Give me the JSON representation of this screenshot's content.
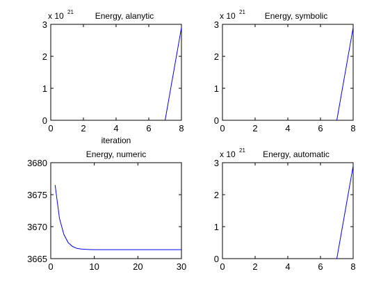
{
  "figure": {
    "background": "#ffffff",
    "line_color": "#0000ff",
    "axis_color": "#000000"
  },
  "chart_data": [
    {
      "type": "line",
      "title": "Energy, alanytic",
      "xlabel": "iteration",
      "ylabel": "",
      "exponent_label": "x 10",
      "exponent_power": "21",
      "xlim": [
        0,
        8
      ],
      "ylim": [
        0,
        3
      ],
      "xticks": [
        0,
        2,
        4,
        6,
        8
      ],
      "yticks": [
        0,
        1,
        2,
        3
      ],
      "series": [
        {
          "x": [
            7,
            8
          ],
          "y": [
            0,
            2.9
          ]
        }
      ]
    },
    {
      "type": "line",
      "title": "Energy, symbolic",
      "xlabel": "",
      "ylabel": "",
      "exponent_label": "x 10",
      "exponent_power": "21",
      "xlim": [
        0,
        8
      ],
      "ylim": [
        0,
        3
      ],
      "xticks": [
        0,
        2,
        4,
        6,
        8
      ],
      "yticks": [
        0,
        1,
        2,
        3
      ],
      "series": [
        {
          "x": [
            7,
            8
          ],
          "y": [
            0,
            2.9
          ]
        }
      ]
    },
    {
      "type": "line",
      "title": "Energy, numeric",
      "xlabel": "",
      "ylabel": "",
      "exponent_label": "",
      "exponent_power": "",
      "xlim": [
        0,
        30
      ],
      "ylim": [
        3665,
        3680
      ],
      "xticks": [
        0,
        10,
        20,
        30
      ],
      "yticks": [
        3665,
        3670,
        3675,
        3680
      ],
      "series": [
        {
          "x": [
            1,
            2,
            3,
            4,
            5,
            6,
            7,
            8,
            9,
            10,
            11,
            12,
            15,
            20,
            25,
            30
          ],
          "y": [
            3676.5,
            3671.3,
            3668.8,
            3667.5,
            3666.9,
            3666.6,
            3666.5,
            3666.45,
            3666.42,
            3666.4,
            3666.4,
            3666.4,
            3666.4,
            3666.4,
            3666.4,
            3666.4
          ]
        }
      ]
    },
    {
      "type": "line",
      "title": "Energy, automatic",
      "xlabel": "",
      "ylabel": "",
      "exponent_label": "x 10",
      "exponent_power": "21",
      "xlim": [
        0,
        8
      ],
      "ylim": [
        0,
        3
      ],
      "xticks": [
        0,
        2,
        4,
        6,
        8
      ],
      "yticks": [
        0,
        1,
        2,
        3
      ],
      "series": [
        {
          "x": [
            7,
            8
          ],
          "y": [
            0,
            2.9
          ]
        }
      ]
    }
  ]
}
